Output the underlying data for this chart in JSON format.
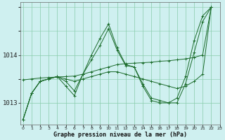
{
  "title": "Graphe pression niveau de la mer (hPa)",
  "bg_color": "#cff0f0",
  "grid_color": "#88ccaa",
  "line_color": "#1a6b2a",
  "ylim": [
    1012.55,
    1015.1
  ],
  "xlim": [
    -0.3,
    23
  ],
  "yticks": [
    1013,
    1014
  ],
  "series": [
    [
      1012.65,
      1013.2,
      1013.45,
      1013.5,
      1013.55,
      1013.5,
      1013.45,
      1013.5,
      1013.55,
      1013.6,
      1013.65,
      1013.65,
      1013.6,
      1013.55,
      1013.5,
      1013.45,
      1013.4,
      1013.35,
      1013.3,
      1013.35,
      1013.45,
      1013.6,
      1015.0
    ],
    [
      1012.65,
      1013.2,
      1013.45,
      1013.5,
      1013.55,
      1013.35,
      1013.15,
      1013.6,
      1014.0,
      1014.35,
      1014.65,
      1014.15,
      1013.8,
      1013.75,
      1013.35,
      1013.05,
      1013.0,
      1013.0,
      1013.0,
      1013.4,
      1014.05,
      1014.7,
      1015.0
    ],
    [
      1012.65,
      1013.2,
      1013.45,
      1013.5,
      1013.55,
      1013.45,
      1013.25,
      1013.6,
      1013.9,
      1014.2,
      1014.55,
      1014.1,
      1013.78,
      1013.75,
      1013.4,
      1013.1,
      1013.05,
      1013.0,
      1013.1,
      1013.55,
      1014.3,
      1014.82,
      1015.0
    ],
    [
      1013.48,
      1013.5,
      1013.52,
      1013.53,
      1013.54,
      1013.55,
      1013.56,
      1013.6,
      1013.65,
      1013.7,
      1013.75,
      1013.8,
      1013.82,
      1013.83,
      1013.84,
      1013.85,
      1013.87,
      1013.88,
      1013.9,
      1013.92,
      1013.95,
      1014.0,
      1015.0
    ]
  ]
}
